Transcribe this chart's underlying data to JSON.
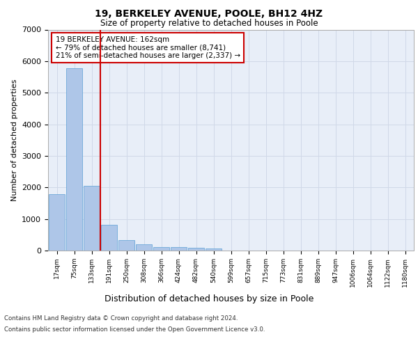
{
  "title1": "19, BERKELEY AVENUE, POOLE, BH12 4HZ",
  "title2": "Size of property relative to detached houses in Poole",
  "xlabel": "Distribution of detached houses by size in Poole",
  "ylabel": "Number of detached properties",
  "bar_labels": [
    "17sqm",
    "75sqm",
    "133sqm",
    "191sqm",
    "250sqm",
    "308sqm",
    "366sqm",
    "424sqm",
    "482sqm",
    "540sqm",
    "599sqm",
    "657sqm",
    "715sqm",
    "773sqm",
    "831sqm",
    "889sqm",
    "947sqm",
    "1006sqm",
    "1064sqm",
    "1122sqm",
    "1180sqm"
  ],
  "bar_values": [
    1780,
    5780,
    2060,
    820,
    340,
    195,
    120,
    100,
    90,
    75,
    0,
    0,
    0,
    0,
    0,
    0,
    0,
    0,
    0,
    0,
    0
  ],
  "bar_color": "#aec6e8",
  "bar_edge_color": "#5a9fd4",
  "vline_x": 2.5,
  "annotation_line1": "19 BERKELEY AVENUE: 162sqm",
  "annotation_line2": "← 79% of detached houses are smaller (8,741)",
  "annotation_line3": "21% of semi-detached houses are larger (2,337) →",
  "vline_color": "#cc0000",
  "annotation_box_color": "#cc0000",
  "ylim": [
    0,
    7000
  ],
  "yticks": [
    0,
    1000,
    2000,
    3000,
    4000,
    5000,
    6000,
    7000
  ],
  "footer1": "Contains HM Land Registry data © Crown copyright and database right 2024.",
  "footer2": "Contains public sector information licensed under the Open Government Licence v3.0.",
  "grid_color": "#d0d8e8",
  "bg_color": "#e8eef8",
  "fig_bg_color": "#ffffff"
}
